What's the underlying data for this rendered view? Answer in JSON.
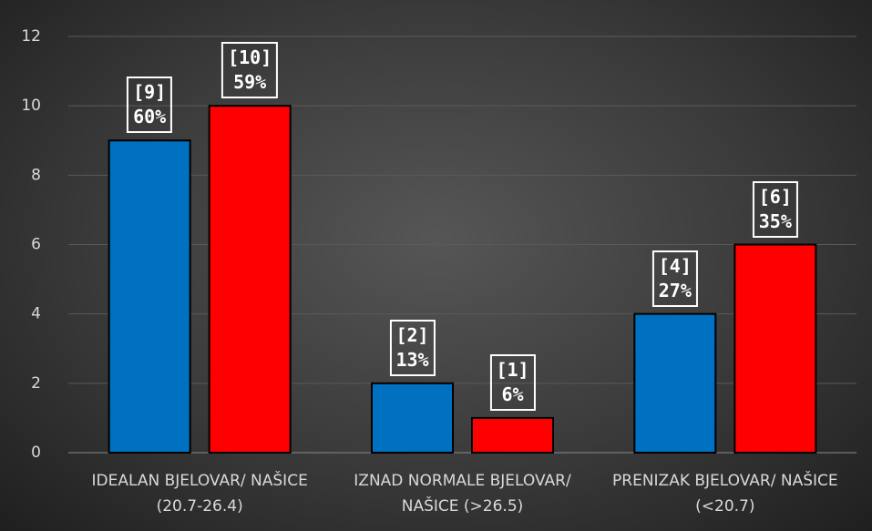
{
  "chart_data": {
    "type": "bar",
    "categories": [
      "IDEALAN BJELOVAR/ NAŠICE\n(20.7-26.4)",
      "IZNAD NORMALE BJELOVAR/\nNAŠICE (>26.5)",
      "PRENIZAK BJELOVAR/ NAŠICE\n(<20.7)"
    ],
    "series": [
      {
        "color": "#0070c0",
        "values": [
          9,
          2,
          4
        ],
        "value_labels": [
          "[9]\n60%",
          "[2]\n13%",
          "[4]\n27%"
        ]
      },
      {
        "color": "#ff0000",
        "values": [
          10,
          1,
          6
        ],
        "value_labels": [
          "[10]\n59%",
          "[1]\n6%",
          "[6]\n35%"
        ]
      }
    ],
    "ylim": [
      0,
      12
    ],
    "yticks": [
      0,
      2,
      4,
      6,
      8,
      10,
      12
    ],
    "grid": true
  }
}
